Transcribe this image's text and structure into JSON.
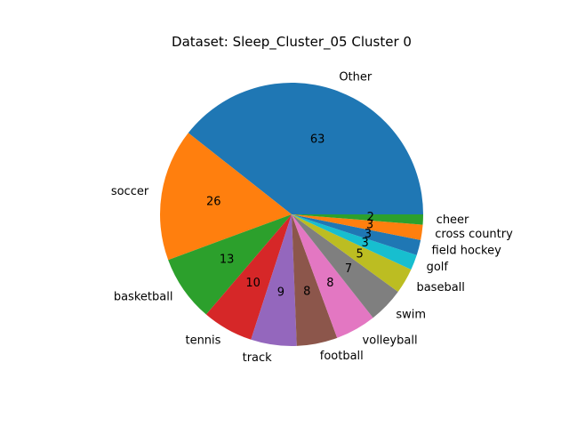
{
  "chart_data": {
    "type": "pie",
    "title": "Dataset: Sleep_Cluster_05 Cluster 0",
    "slices": [
      {
        "label": "Other",
        "value": 63,
        "color": "#1f77b4"
      },
      {
        "label": "soccer",
        "value": 26,
        "color": "#ff7f0e"
      },
      {
        "label": "basketball",
        "value": 13,
        "color": "#2ca02c"
      },
      {
        "label": "tennis",
        "value": 10,
        "color": "#d62728"
      },
      {
        "label": "track",
        "value": 9,
        "color": "#9467bd"
      },
      {
        "label": "football",
        "value": 8,
        "color": "#8c564b"
      },
      {
        "label": "volleyball",
        "value": 8,
        "color": "#e377c2"
      },
      {
        "label": "swim",
        "value": 7,
        "color": "#7f7f7f"
      },
      {
        "label": "baseball",
        "value": 5,
        "color": "#bcbd22"
      },
      {
        "label": "golf",
        "value": 3,
        "color": "#17becf"
      },
      {
        "label": "field hockey",
        "value": 3,
        "color": "#1f77b4"
      },
      {
        "label": "cross country",
        "value": 3,
        "color": "#ff7f0e"
      },
      {
        "label": "cheer",
        "value": 2,
        "color": "#2ca02c"
      }
    ]
  }
}
